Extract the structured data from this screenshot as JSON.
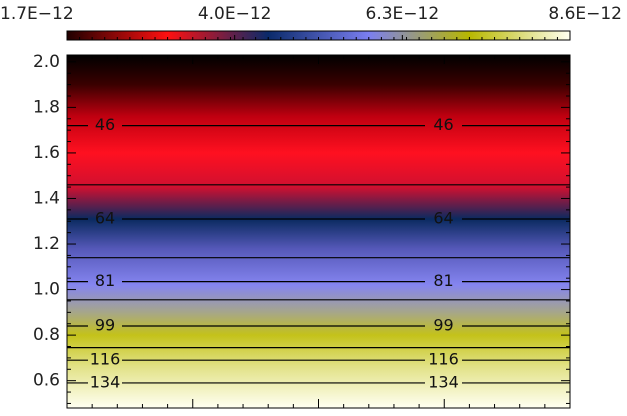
{
  "chart_data": {
    "type": "contour-heatmap",
    "colorbar": {
      "lim": [
        1.7e-12,
        8.6e-12
      ],
      "ticks": [
        {
          "value": 1.7e-12,
          "label": "1.7E−12"
        },
        {
          "value": 4e-12,
          "label": "4.0E−12"
        },
        {
          "value": 6.3e-12,
          "label": "6.3E−12"
        },
        {
          "value": 8.6e-12,
          "label": "8.6E−12"
        }
      ],
      "colors": [
        "#200000",
        "#ff1010",
        "#0a2a6a",
        "#7b7ff0",
        "#b8b800",
        "#fffff0"
      ]
    },
    "ylim": [
      0.48,
      2.03
    ],
    "yticks": [
      {
        "value": 0.6,
        "label": "0.6"
      },
      {
        "value": 0.8,
        "label": "0.8"
      },
      {
        "value": 1.0,
        "label": "1.0"
      },
      {
        "value": 1.2,
        "label": "1.2"
      },
      {
        "value": 1.4,
        "label": "1.4"
      },
      {
        "value": 1.6,
        "label": "1.6"
      },
      {
        "value": 1.8,
        "label": "1.8"
      },
      {
        "value": 2.0,
        "label": "2.0"
      }
    ],
    "field_stops": [
      {
        "y": 2.03,
        "color": "#000000"
      },
      {
        "y": 1.9,
        "color": "#3a0000"
      },
      {
        "y": 1.76,
        "color": "#c00010"
      },
      {
        "y": 1.6,
        "color": "#ff1020"
      },
      {
        "y": 1.45,
        "color": "#d01030"
      },
      {
        "y": 1.31,
        "color": "#0a2a60"
      },
      {
        "y": 1.18,
        "color": "#5558b8"
      },
      {
        "y": 1.02,
        "color": "#8585f0"
      },
      {
        "y": 0.9,
        "color": "#a6a68a"
      },
      {
        "y": 0.8,
        "color": "#c4c21a"
      },
      {
        "y": 0.66,
        "color": "#e2e288"
      },
      {
        "y": 0.48,
        "color": "#fffff2"
      }
    ],
    "contours": [
      {
        "label": 46,
        "y": 1.72
      },
      {
        "y": 1.46
      },
      {
        "label": 64,
        "y": 1.31
      },
      {
        "y": 1.14
      },
      {
        "label": 81,
        "y": 1.035
      },
      {
        "y": 0.955
      },
      {
        "label": 99,
        "y": 0.84
      },
      {
        "y": 0.745
      },
      {
        "label": 116,
        "y": 0.69
      },
      {
        "label": 134,
        "y": 0.59
      }
    ]
  }
}
